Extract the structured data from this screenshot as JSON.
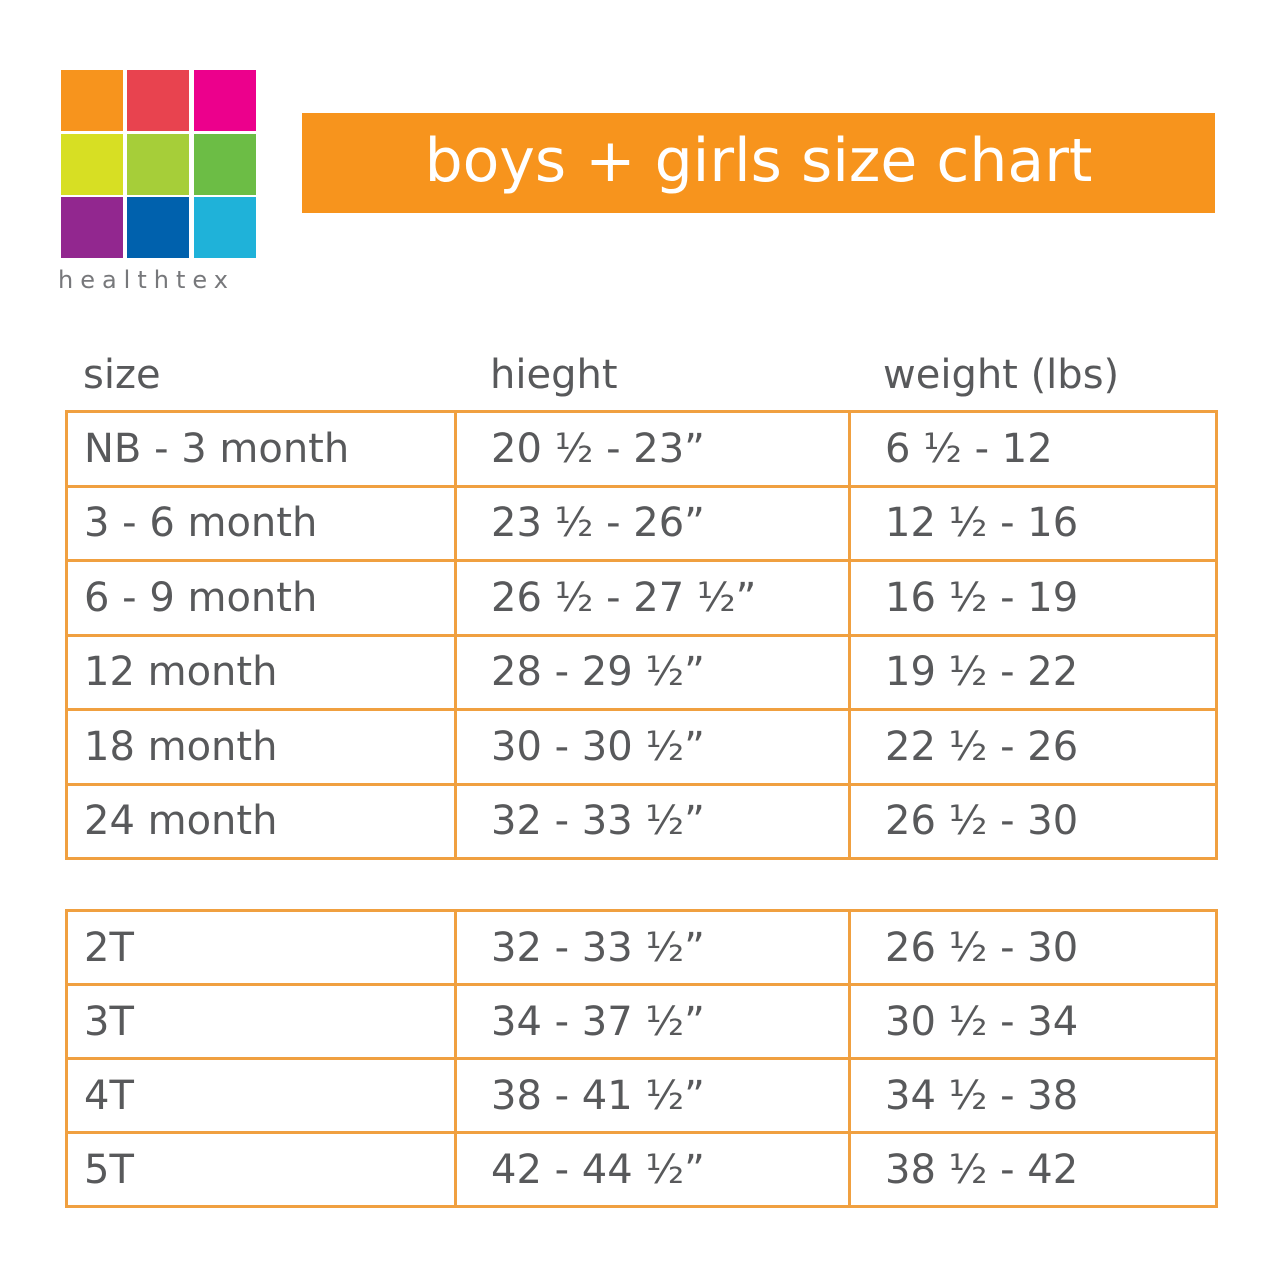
{
  "logo": {
    "text": "healthtex"
  },
  "header": {
    "title": "boys + girls size chart"
  },
  "columns": [
    "size",
    "hieght",
    "weight (lbs)"
  ],
  "tables": [
    {
      "rows": [
        [
          "NB - 3 month",
          "20 ½ - 23”",
          "6 ½ - 12"
        ],
        [
          "3 - 6 month",
          "23 ½ - 26”",
          "12 ½ - 16"
        ],
        [
          "6 - 9 month",
          "26 ½ - 27 ½”",
          "16 ½ - 19"
        ],
        [
          "12 month",
          "28 - 29 ½”",
          "19 ½ - 22"
        ],
        [
          "18 month",
          "30 - 30 ½”",
          "22 ½ - 26"
        ],
        [
          "24 month",
          "32 - 33 ½”",
          "26 ½ - 30"
        ]
      ]
    },
    {
      "rows": [
        [
          "2T",
          "32 - 33 ½”",
          "26 ½ - 30"
        ],
        [
          "3T",
          "34 - 37 ½”",
          "30 ½ - 34"
        ],
        [
          "4T",
          "38 - 41 ½”",
          "34 ½ - 38"
        ],
        [
          "5T",
          "42 - 44 ½”",
          "38 ½ - 42"
        ]
      ]
    }
  ]
}
